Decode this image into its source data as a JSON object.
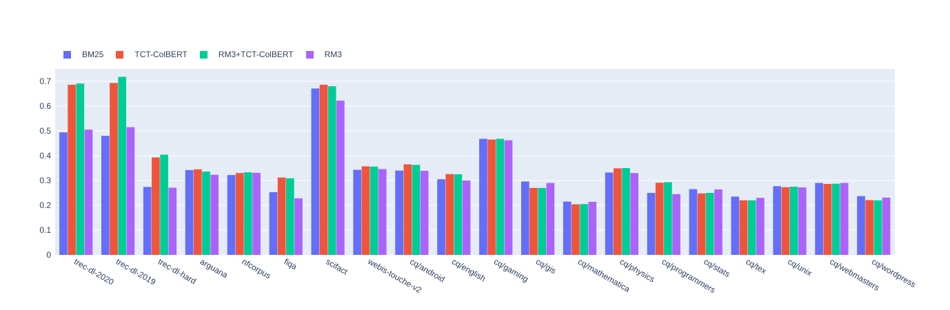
{
  "chart_data": {
    "type": "bar",
    "title": "",
    "xlabel": "",
    "ylabel": "",
    "ylim": [
      0,
      0.75
    ],
    "yticks": [
      0,
      0.1,
      0.2,
      0.3,
      0.4,
      0.5,
      0.6,
      0.7
    ],
    "ytick_labels": [
      "0",
      "0.1",
      "0.2",
      "0.3",
      "0.4",
      "0.5",
      "0.6",
      "0.7"
    ],
    "grid": true,
    "legend_position": "top-left, horizontal",
    "categories": [
      "trec-dl-2020",
      "trec-dl-2019",
      "trec-dl-hard",
      "arguana",
      "nfcorpus",
      "fiqa",
      "scifact",
      "webis-touche-v2",
      "cq/android",
      "cq/english",
      "cq/gaming",
      "cq/gis",
      "cq/mathematica",
      "cq/physics",
      "cq/programmers",
      "cq/stats",
      "cq/tex",
      "cq/unix",
      "cq/webmasters",
      "cq/wordpress"
    ],
    "series": [
      {
        "name": "BM25",
        "color": "#636efa",
        "values": [
          0.494,
          0.48,
          0.274,
          0.342,
          0.322,
          0.253,
          0.671,
          0.343,
          0.34,
          0.305,
          0.468,
          0.296,
          0.215,
          0.332,
          0.25,
          0.265,
          0.235,
          0.277,
          0.29,
          0.237
        ]
      },
      {
        "name": "TCT-ColBERT",
        "color": "#ef553b",
        "values": [
          0.686,
          0.693,
          0.393,
          0.345,
          0.33,
          0.312,
          0.686,
          0.357,
          0.365,
          0.326,
          0.465,
          0.27,
          0.204,
          0.349,
          0.291,
          0.248,
          0.22,
          0.273,
          0.286,
          0.221
        ]
      },
      {
        "name": "RM3+TCT-ColBERT",
        "color": "#00cc96",
        "values": [
          0.691,
          0.718,
          0.404,
          0.336,
          0.333,
          0.309,
          0.68,
          0.356,
          0.363,
          0.325,
          0.468,
          0.27,
          0.205,
          0.35,
          0.293,
          0.25,
          0.22,
          0.275,
          0.287,
          0.22
        ]
      },
      {
        "name": "RM3",
        "color": "#ab63fa",
        "values": [
          0.505,
          0.515,
          0.271,
          0.323,
          0.331,
          0.228,
          0.622,
          0.346,
          0.339,
          0.3,
          0.462,
          0.29,
          0.214,
          0.33,
          0.245,
          0.264,
          0.23,
          0.272,
          0.29,
          0.231
        ]
      }
    ]
  }
}
